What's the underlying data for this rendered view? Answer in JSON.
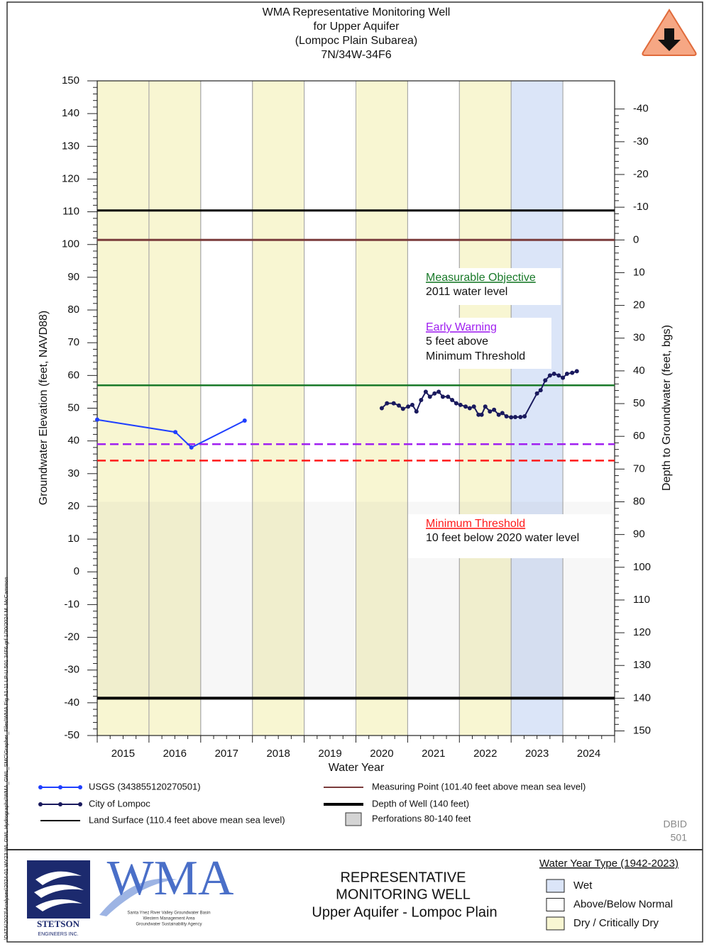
{
  "header": {
    "title_lines": [
      "WMA Representative Monitoring Well",
      "for Upper Aquifer",
      "(Lompoc Plain Subarea)",
      "7N/34W-34F6"
    ]
  },
  "side_note": "\\DATA\\2023\\Analyses\\2024-01 WY23 WL GWL Hydrographs\\WMA_GWL_SMC\\Grapher_Files\\WMA Fig A1-11 LP-U 501 34F6.grf 1/30/2024 M. McCammon",
  "chart_data": {
    "type": "line",
    "ylabel": "Groundwater Elevation (feet, NAVD88)",
    "y2label": "Depth to Groundwater (feet, bgs)",
    "xlabel": "Water Year",
    "xlim": [
      2014.5,
      2024.5
    ],
    "xticks": [
      2015,
      2016,
      2017,
      2018,
      2019,
      2020,
      2021,
      2022,
      2023,
      2024
    ],
    "year_types": [
      "dry",
      "dry",
      "normal",
      "dry",
      "normal",
      "dry",
      "normal",
      "dry",
      "wet",
      "normal"
    ],
    "ylim": [
      -50,
      150
    ],
    "yticks": [
      -50,
      -40,
      -30,
      -20,
      -10,
      0,
      10,
      20,
      30,
      40,
      50,
      60,
      70,
      80,
      90,
      100,
      110,
      120,
      130,
      140,
      150
    ],
    "y2lim": [
      -48.6,
      151.4
    ],
    "y2_inverted": true,
    "y2ticks": [
      -40,
      -30,
      -20,
      -10,
      0,
      10,
      20,
      30,
      40,
      50,
      60,
      70,
      80,
      90,
      100,
      110,
      120,
      130,
      140,
      150
    ],
    "series": [
      {
        "name": "USGS (343855120270501)",
        "color": "#1f3fff",
        "x": [
          2014.5,
          2016.01,
          2016.32,
          2017.35
        ],
        "values": [
          46.5,
          42.7,
          38.0,
          46.2
        ]
      },
      {
        "name": "City of Lompoc",
        "color": "#1a1a5e",
        "x": [
          2020.0,
          2020.1,
          2020.23,
          2020.33,
          2020.41,
          2020.51,
          2020.59,
          2020.67,
          2020.76,
          2020.85,
          2020.93,
          2021.02,
          2021.1,
          2021.18,
          2021.28,
          2021.36,
          2021.44,
          2021.52,
          2021.62,
          2021.7,
          2021.78,
          2021.87,
          2021.93,
          2022.0,
          2022.09,
          2022.17,
          2022.26,
          2022.33,
          2022.41,
          2022.5,
          2022.58,
          2022.68,
          2022.76,
          2023.0,
          2023.07,
          2023.16,
          2023.25,
          2023.33,
          2023.42,
          2023.5,
          2023.58,
          2023.68,
          2023.77
        ],
        "values": [
          50,
          51.5,
          51.5,
          50.8,
          49.8,
          50.5,
          51,
          49,
          52.5,
          55,
          53.5,
          54.5,
          55,
          53.5,
          53.5,
          52.5,
          51.5,
          51,
          50.5,
          50,
          50.5,
          48,
          48,
          50.5,
          49,
          49.5,
          48,
          48.5,
          47.5,
          47.2,
          47.3,
          47.3,
          47.5,
          54.5,
          55.5,
          58.5,
          60,
          60.5,
          60,
          59.3,
          60.5,
          60.8,
          61.3
        ]
      }
    ],
    "levels": [
      {
        "name": "Land Surface (110.4 feet above mean sea level)",
        "value": 110.4,
        "color": "#000000",
        "width": 3,
        "dashed": false
      },
      {
        "name": "Measuring Point (101.40 feet above mean sea level)",
        "value": 101.4,
        "color": "#7a3b3b",
        "width": 3,
        "dashed": false
      },
      {
        "name": "Measurable Objective",
        "notes": [
          "2011 water level"
        ],
        "value": 57,
        "color": "#1a7a2a",
        "width": 2.5,
        "dashed": false
      },
      {
        "name": "Early Warning",
        "notes": [
          "5 feet above",
          "Minimum Threshold"
        ],
        "value": 39,
        "color": "#a020f0",
        "width": 2.5,
        "dashed": true
      },
      {
        "name": "Minimum Threshold",
        "notes": [
          "10 feet below 2020 water level"
        ],
        "value": 34,
        "color": "#ff1a1a",
        "width": 2.5,
        "dashed": true
      },
      {
        "name": "Depth of Well (140 feet)",
        "value": -38.6,
        "color": "#000000",
        "width": 4,
        "dashed": false
      }
    ],
    "perforations": {
      "name": "Perforations 80-140 feet",
      "top": 21.4,
      "bottom": -38.6,
      "color": "#d4d4d4"
    }
  },
  "dbid": [
    "DBID",
    "501"
  ],
  "footer": {
    "stetson": [
      "STETSON",
      "ENGINEERS INC."
    ],
    "wma": "WMA",
    "agency_lines": [
      "Santa Ynez River Valley Groundwater Basin",
      "Western Management Area",
      "Groundwater Sustainability Agency"
    ],
    "center_lines": [
      "REPRESENTATIVE",
      "MONITORING WELL",
      "Upper Aquifer - Lompoc Plain"
    ],
    "water_year_type": {
      "title": "Water Year Type (1942-2023)",
      "items": [
        {
          "key": "wet",
          "label": "Wet",
          "color": "#dbe5f8"
        },
        {
          "key": "normal",
          "label": "Above/Below Normal",
          "color": "#ffffff"
        },
        {
          "key": "dry",
          "label": "Dry / Critically Dry",
          "color": "#f8f6d2"
        }
      ]
    }
  }
}
